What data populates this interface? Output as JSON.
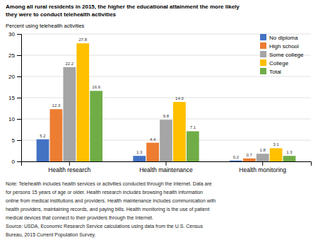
{
  "chart_data": {
    "type": "bar",
    "title": [
      "Among all rural residents in 2015, the higher the educational attainment the more likely",
      "they were to conduct telehealth activities"
    ],
    "ylabel": "Percent using telehealth activities",
    "categories": [
      "Health research",
      "Health maintenance",
      "Health monitoring"
    ],
    "series": [
      {
        "name": "No diploma",
        "color": "#4472C4",
        "values": [
          5.2,
          1.3,
          0.2
        ]
      },
      {
        "name": "High school",
        "color": "#ED7D31",
        "values": [
          12.3,
          4.4,
          0.7
        ]
      },
      {
        "name": "Some college",
        "color": "#A5A5A5",
        "values": [
          22.2,
          9.8,
          1.8
        ]
      },
      {
        "name": "College",
        "color": "#FFC000",
        "values": [
          27.8,
          14.0,
          3.1
        ],
        "value_labels": [
          "27.8",
          "14.0",
          "3.1"
        ]
      },
      {
        "name": "Total",
        "color": "#70AD47",
        "values": [
          16.6,
          7.1,
          1.3
        ]
      }
    ],
    "ylim": [
      0,
      30
    ],
    "yticks": [
      0,
      5,
      10,
      15,
      20,
      25,
      30
    ],
    "grid": true,
    "legend": "upper right",
    "data_labels": true,
    "note": [
      "Note: Telehealth includes health services or activities conducted through the Internet. Data are",
      "for persons 15 years of age or older. Health research includes browsing health information",
      "online from medical institutions and providers. Health maintenance includes communication with",
      "health providers, maintaining records, and paying bills. Health monitoring is the use of patient",
      "medical devices that connect to their providers through the Internet.",
      "Source: USDA, Economic Research Service calculations using data from the U.S. Census",
      "Bureau, 2015 Current Population Survey."
    ]
  }
}
